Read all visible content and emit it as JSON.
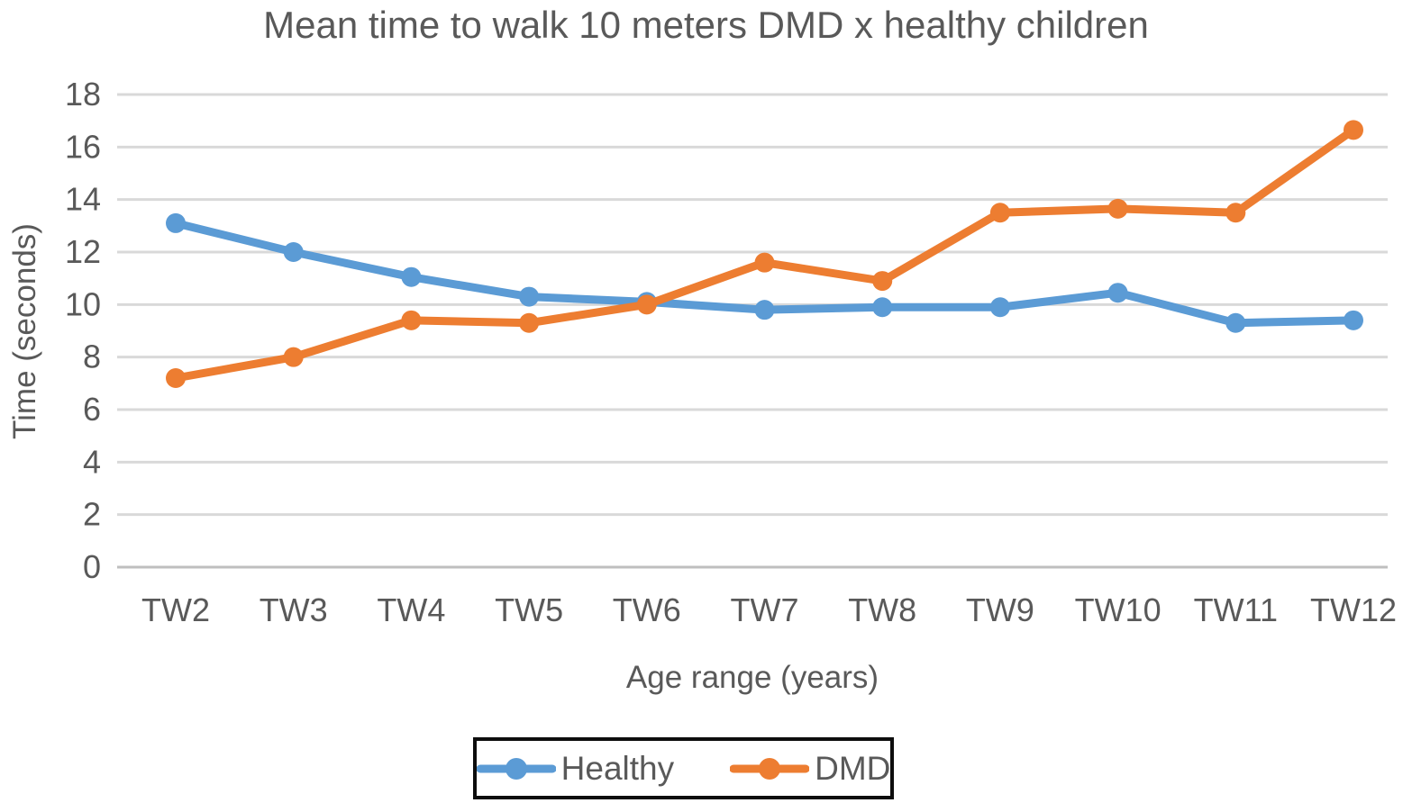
{
  "chart_data": {
    "type": "line",
    "title": "Mean time to walk 10 meters DMD x healthy children",
    "xlabel": "Age range (years)",
    "ylabel": "Time (seconds)",
    "categories": [
      "TW2",
      "TW3",
      "TW4",
      "TW5",
      "TW6",
      "TW7",
      "TW8",
      "TW9",
      "TW10",
      "TW11",
      "TW12"
    ],
    "series": [
      {
        "name": "Healthy",
        "color": "#5B9BD5",
        "values": [
          13.1,
          12.0,
          11.05,
          10.3,
          10.1,
          9.8,
          9.9,
          9.9,
          10.45,
          9.3,
          9.4
        ]
      },
      {
        "name": "DMD",
        "color": "#ED7D31",
        "values": [
          7.2,
          8.0,
          9.4,
          9.3,
          10.0,
          11.6,
          10.9,
          13.5,
          13.65,
          13.5,
          16.65
        ]
      }
    ],
    "ylim": [
      0,
      18
    ],
    "ytick_step": 2,
    "ytick_labels": [
      "0",
      "2",
      "4",
      "6",
      "8",
      "10",
      "12",
      "14",
      "16",
      "18"
    ],
    "grid": "horizontal",
    "legend_position": "bottom"
  },
  "colors": {
    "text": "#595959",
    "gridline": "#D9D9D9",
    "axis_line": "#BFBFBF",
    "legend_border": "#0D0D0D",
    "background": "#FFFFFF"
  }
}
